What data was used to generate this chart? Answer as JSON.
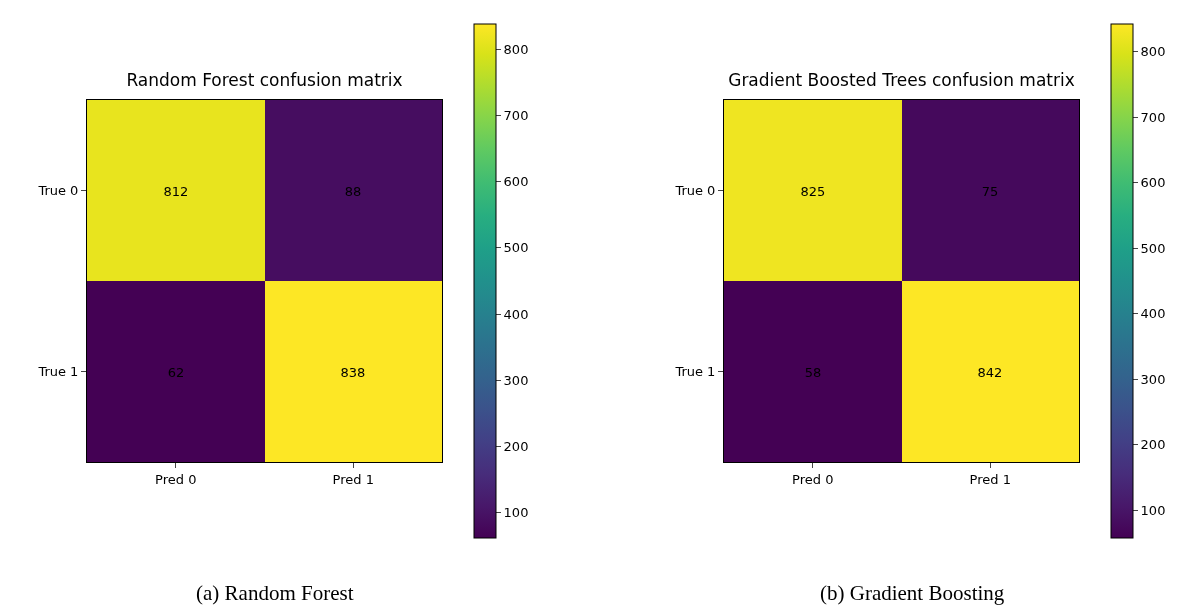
{
  "chart_data": [
    {
      "type": "heatmap",
      "title": "Random Forest confusion matrix",
      "categories": [
        "Pred 0",
        "Pred 1"
      ],
      "y_categories": [
        "True 0",
        "True 1"
      ],
      "cells": [
        [
          812,
          88
        ],
        [
          62,
          838
        ]
      ],
      "clim": [
        62,
        838
      ],
      "cticks": [
        100,
        200,
        300,
        400,
        500,
        600,
        700,
        800
      ],
      "data_labels": true,
      "annotations": [
        "(a) Random Forest"
      ]
    },
    {
      "type": "heatmap",
      "title": "Gradient Boosted Trees confusion matrix",
      "categories": [
        "Pred 0",
        "Pred 1"
      ],
      "y_categories": [
        "True 0",
        "True 1"
      ],
      "cells": [
        [
          825,
          75
        ],
        [
          58,
          842
        ]
      ],
      "clim": [
        58,
        842
      ],
      "cticks": [
        100,
        200,
        300,
        400,
        500,
        600,
        700,
        800
      ],
      "data_labels": true,
      "annotations": [
        "(b) Gradient Boosting"
      ]
    }
  ]
}
